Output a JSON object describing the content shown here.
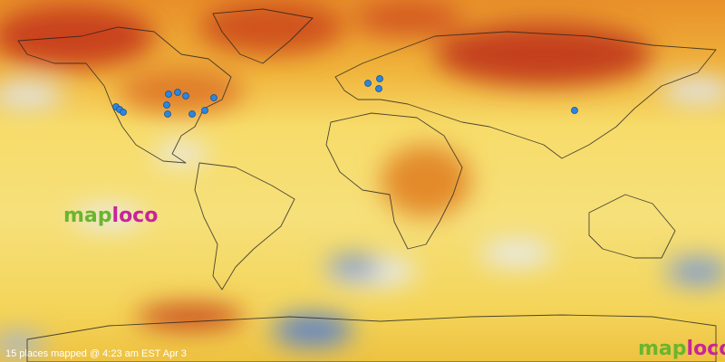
{
  "logo": {
    "map": "map",
    "loco": "loco"
  },
  "status": "15 places mapped @ 4:23 am EST Apr 3"
}
